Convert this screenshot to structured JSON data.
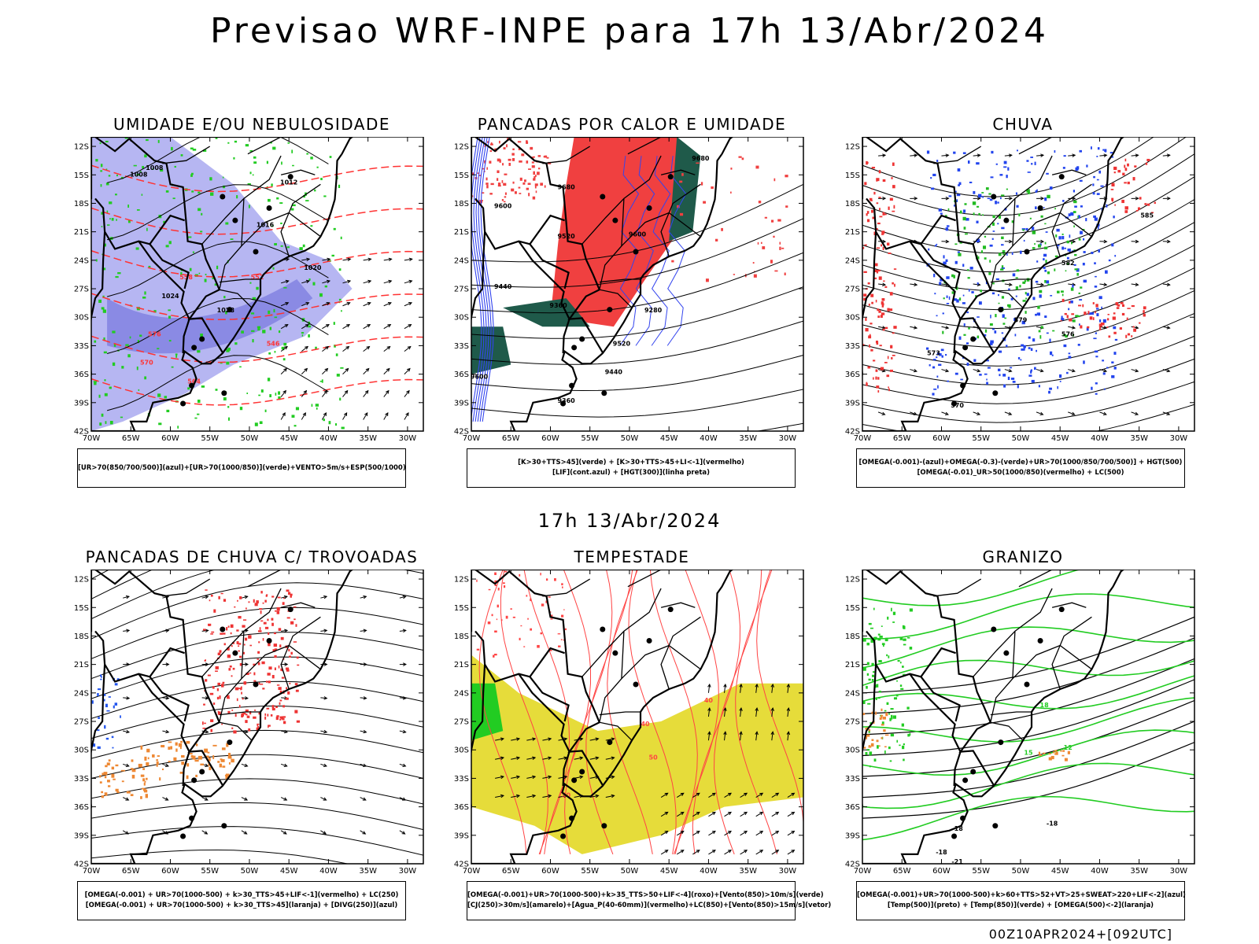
{
  "title": "Previsao WRF-INPE  para 17h 13/Abr/2024",
  "mid_title": "17h 13/Abr/2024",
  "footer": "00Z10APR2024+[092UTC]",
  "axes": {
    "lat_labels": [
      "12S",
      "15S",
      "18S",
      "21S",
      "24S",
      "27S",
      "30S",
      "33S",
      "36S",
      "39S",
      "42S"
    ],
    "lon_labels": [
      "70W",
      "65W",
      "60W",
      "55W",
      "50W",
      "45W",
      "40W",
      "35W",
      "30W"
    ]
  },
  "panels": [
    {
      "id": "umidade",
      "title": "UMIDADE E/OU NEBULOSIDADE",
      "legend": [
        "[UR>70(850/700/500)](azul)+[UR>70(1000/850)](verde)+VENTO>5m/s+ESP(500/1000)"
      ],
      "colors": {
        "fill": "#a9a9f0",
        "fill2": "#8080e0",
        "green": "#22cc22",
        "red": "#ff3333"
      },
      "contour_labels": [
        "1008",
        "1008",
        "1012",
        "1016",
        "1020",
        "1024",
        "1028",
        "576",
        "570",
        "564",
        "558",
        "552",
        "546"
      ]
    },
    {
      "id": "pancadas_calor",
      "title": "PANCADAS POR CALOR E UMIDADE",
      "legend": [
        "[K>30+TTS>45](verde) + [K>30+TTS>45+LI<-1](vermelho)",
        "[LIF](cont.azul) + [HGT(300)](linha preta)"
      ],
      "colors": {
        "red": "#f04040",
        "teal": "#1f5a4a",
        "blue": "#3344ee"
      },
      "contour_labels": [
        "9680",
        "9680",
        "9600",
        "9600",
        "9520",
        "9440",
        "9360",
        "9280",
        "9520",
        "9440",
        "9360",
        "9600"
      ]
    },
    {
      "id": "chuva",
      "title": "CHUVA",
      "legend": [
        "[OMEGA(-0.001)-(azul)+OMEGA(-0.3)-(verde)+UR>70(1000/850/700/500)] + HGT(500)",
        "[OMEGA(-0.01)_UR>50(1000/850)(vermelho) + LC(500)"
      ],
      "colors": {
        "blue": "#2244ee",
        "green": "#22bb22",
        "red": "#ee3333"
      },
      "contour_labels": [
        "585",
        "582",
        "579",
        "576",
        "573",
        "570"
      ]
    },
    {
      "id": "pancadas_trovoadas",
      "title": "PANCADAS DE CHUVA C/ TROVOADAS",
      "legend": [
        "[OMEGA(-0.001) + UR>70(1000-500) + k>30_TTS>45+LIF<-1](vermelho) + LC(250)",
        "[OMEGA(-0.001) + UR>70(1000-500) + k>30_TTS>45](laranja) + [DIVG(250)](azul)"
      ],
      "colors": {
        "red": "#ee3333",
        "orange": "#ee8833",
        "blue": "#2255ee"
      },
      "contour_labels": []
    },
    {
      "id": "tempestade",
      "title": "TEMPESTADE",
      "legend": [
        "[OMEGA(-0.001)+UR>70(1000-500)+k>35_TTS>50+LIF<-4](roxo)+[Vento(850)>10m/s](verde)",
        "[CJ(250)>30m/s](amarelo)+[Agua_P(40-60mm)](vermelho)+LC(850)+[Vento(850)>15m/s](vetor)"
      ],
      "colors": {
        "yellow": "#e6dc3a",
        "red": "#ff4444",
        "green": "#22cc22"
      },
      "contour_labels": [
        "40",
        "50",
        "50",
        "40"
      ]
    },
    {
      "id": "granizo",
      "title": "GRANIZO",
      "legend": [
        "[OMEGA(-0.001)+UR>70(1000-500)+k>60+TTS>52+VT>25+SWEAT>220+LIF<-2](azul)",
        "[Temp(500)](preto) + [Temp(850)](verde) + [OMEGA(500)<-2](laranja)"
      ],
      "colors": {
        "green": "#22cc22",
        "orange": "#ee8833"
      },
      "contour_labels": [
        "-18",
        "-18",
        "-18",
        "-21",
        "12",
        "15",
        "18"
      ]
    }
  ]
}
